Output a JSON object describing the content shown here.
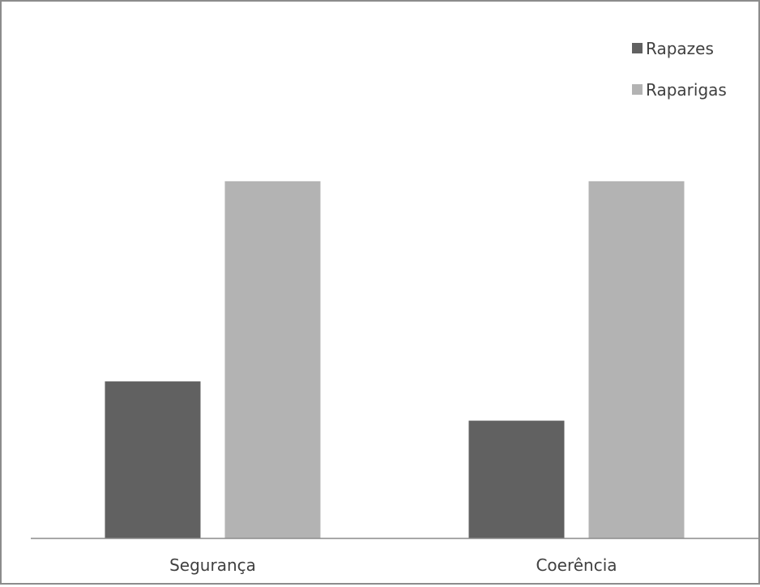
{
  "chart_data": {
    "type": "bar",
    "title": "",
    "xlabel": "",
    "ylabel": "",
    "categories": [
      "Segurança",
      "Coerência"
    ],
    "series": [
      {
        "name": "Rapazes",
        "values": [
          4.0,
          3.0
        ],
        "color": "#616161"
      },
      {
        "name": "Raparigas",
        "values": [
          9.1,
          9.1
        ],
        "color": "#b3b3b3"
      }
    ],
    "ylim": [
      0,
      12.5
    ],
    "grid": false,
    "legend": "top-right",
    "axis_color": "#8c8c8c"
  }
}
